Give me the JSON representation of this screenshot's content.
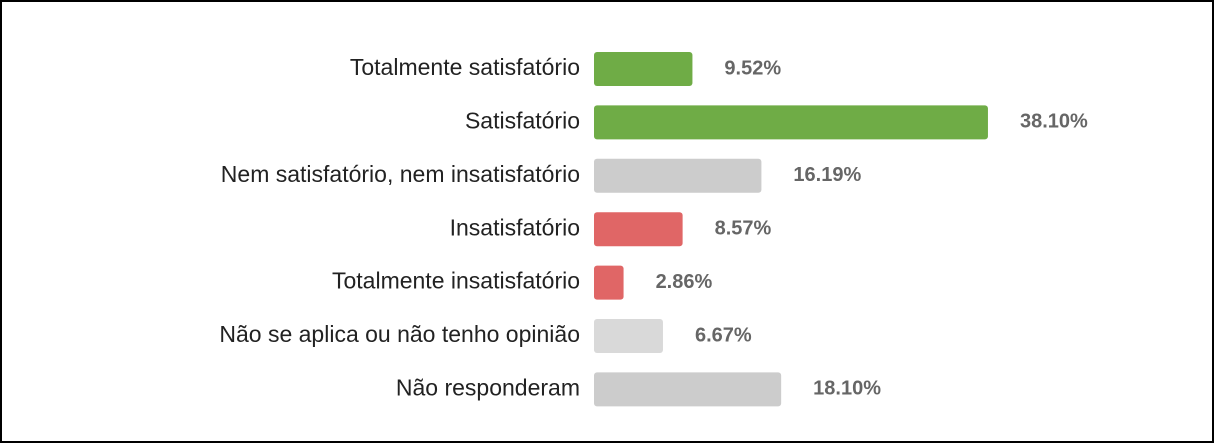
{
  "chart_data": {
    "type": "hbar",
    "categories": [
      "Totalmente satisfatório",
      "Satisfatório",
      "Nem satisfatório, nem insatisfatório",
      "Insatisfatório",
      "Totalmente insatisfatório",
      "Não se aplica ou não tenho opinião",
      "Não responderam"
    ],
    "values": [
      9.52,
      38.1,
      16.19,
      8.57,
      2.86,
      6.67,
      18.1
    ],
    "value_labels": [
      "9.52%",
      "38.10%",
      "16.19%",
      "8.57%",
      "2.86%",
      "6.67%",
      "18.10%"
    ],
    "colors": [
      "#6fac46",
      "#6fac46",
      "#cccccc",
      "#e06666",
      "#e06666",
      "#d9d9d9",
      "#cccccc"
    ]
  }
}
